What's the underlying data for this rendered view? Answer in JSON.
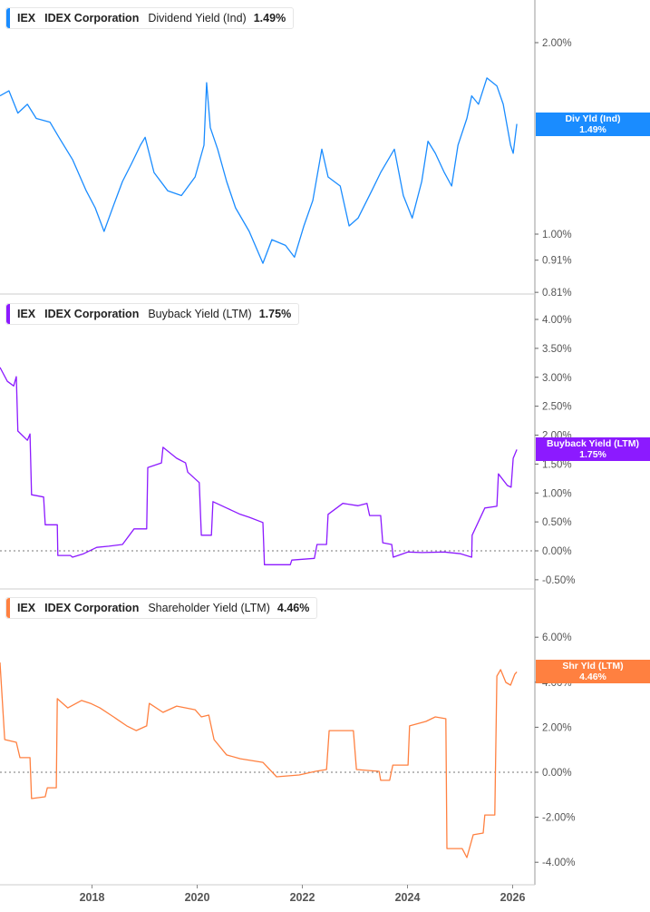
{
  "ticker": "IEX",
  "company": "IDEX Corporation",
  "x_axis": {
    "ticks": [
      "2018",
      "2020",
      "2022",
      "2024",
      "2026"
    ]
  },
  "colors": {
    "dividend": "#1a8cff",
    "buyback": "#8c1aff",
    "shareholder": "#ff8040"
  },
  "chart_data": [
    {
      "type": "line",
      "legend": {
        "metric": "Dividend Yield (Ind)",
        "value": "1.49%"
      },
      "badge": {
        "label": "Div Yld (Ind)",
        "value": "1.49%"
      },
      "yscale": "log",
      "ylim": [
        0.8,
        2.4
      ],
      "y_ticks": [
        "2.00%",
        "1.00%",
        "0.91%",
        "0.81%"
      ],
      "y_tick_values": [
        2.0,
        1.0,
        0.91,
        0.81
      ],
      "x": [
        2016.25,
        2016.42,
        2016.59,
        2016.77,
        2016.94,
        2017.2,
        2017.37,
        2017.63,
        2017.89,
        2018.06,
        2018.23,
        2018.41,
        2018.58,
        2018.75,
        2018.92,
        2019.01,
        2019.18,
        2019.44,
        2019.7,
        2019.96,
        2020.13,
        2020.18,
        2020.25,
        2020.39,
        2020.56,
        2020.73,
        2020.99,
        2021.25,
        2021.42,
        2021.68,
        2021.85,
        2022.03,
        2022.2,
        2022.37,
        2022.49,
        2022.72,
        2022.89,
        2023.06,
        2023.32,
        2023.49,
        2023.75,
        2023.92,
        2024.09,
        2024.27,
        2024.39,
        2024.53,
        2024.7,
        2024.84,
        2024.96,
        2025.13,
        2025.22,
        2025.35,
        2025.51,
        2025.7,
        2025.82,
        2025.96,
        2026.01,
        2026.08
      ],
      "values": [
        1.65,
        1.68,
        1.55,
        1.6,
        1.52,
        1.5,
        1.42,
        1.31,
        1.17,
        1.1,
        1.01,
        1.11,
        1.21,
        1.29,
        1.38,
        1.42,
        1.25,
        1.17,
        1.15,
        1.23,
        1.38,
        1.73,
        1.47,
        1.36,
        1.21,
        1.1,
        1.01,
        0.9,
        0.98,
        0.96,
        0.92,
        1.03,
        1.13,
        1.36,
        1.23,
        1.19,
        1.03,
        1.06,
        1.17,
        1.25,
        1.36,
        1.15,
        1.06,
        1.21,
        1.4,
        1.34,
        1.25,
        1.19,
        1.38,
        1.52,
        1.65,
        1.6,
        1.76,
        1.71,
        1.6,
        1.38,
        1.34,
        1.49
      ]
    },
    {
      "type": "line",
      "legend": {
        "metric": "Buyback Yield (LTM)",
        "value": "1.75%"
      },
      "badge": {
        "label": "Buyback Yield (LTM)",
        "value": "1.75%"
      },
      "yscale": "linear",
      "ylim": [
        -0.75,
        4.5
      ],
      "y_ticks": [
        "4.00%",
        "3.50%",
        "3.00%",
        "2.50%",
        "2.00%",
        "1.50%",
        "1.00%",
        "0.50%",
        "0.00%",
        "-0.50%"
      ],
      "y_tick_values": [
        4,
        3.5,
        3,
        2.5,
        2,
        1.5,
        1,
        0.5,
        0,
        -0.5
      ],
      "zero_line": true,
      "x": [
        2016.25,
        2016.39,
        2016.51,
        2016.56,
        2016.59,
        2016.77,
        2016.82,
        2016.85,
        2017.08,
        2017.11,
        2017.34,
        2017.35,
        2017.59,
        2017.63,
        2017.84,
        2018.09,
        2018.32,
        2018.58,
        2018.8,
        2019.04,
        2019.06,
        2019.32,
        2019.35,
        2019.61,
        2019.78,
        2019.82,
        2020.04,
        2020.08,
        2020.27,
        2020.3,
        2020.56,
        2020.82,
        2020.99,
        2021.25,
        2021.28,
        2021.77,
        2021.8,
        2022.23,
        2022.28,
        2022.46,
        2022.49,
        2022.77,
        2023.06,
        2023.23,
        2023.28,
        2023.49,
        2023.53,
        2023.7,
        2023.73,
        2024.01,
        2024.27,
        2024.7,
        2025.01,
        2025.22,
        2025.23,
        2025.47,
        2025.7,
        2025.73,
        2025.9,
        2025.97,
        2026.01,
        2026.08
      ],
      "values": [
        3.17,
        2.93,
        2.85,
        3.01,
        2.07,
        1.91,
        2.02,
        0.97,
        0.93,
        0.45,
        0.45,
        -0.08,
        -0.08,
        -0.11,
        -0.05,
        0.06,
        0.08,
        0.11,
        0.38,
        0.38,
        1.44,
        1.52,
        1.79,
        1.6,
        1.52,
        1.36,
        1.18,
        0.27,
        0.27,
        0.85,
        0.74,
        0.63,
        0.58,
        0.49,
        -0.24,
        -0.24,
        -0.16,
        -0.13,
        0.11,
        0.11,
        0.63,
        0.82,
        0.78,
        0.82,
        0.61,
        0.61,
        0.14,
        0.11,
        -0.11,
        -0.02,
        -0.03,
        -0.02,
        -0.05,
        -0.11,
        0.27,
        0.74,
        0.77,
        1.33,
        1.13,
        1.1,
        1.6,
        1.75
      ]
    },
    {
      "type": "line",
      "legend": {
        "metric": "Shareholder Yield (LTM)",
        "value": "4.46%"
      },
      "badge": {
        "label": "Shr Yld (LTM)",
        "value": "4.46%"
      },
      "yscale": "linear",
      "ylim": [
        -5,
        7
      ],
      "y_ticks": [
        "6.00%",
        "4.00%",
        "2.00%",
        "0.00%",
        "-2.00%",
        "-4.00%"
      ],
      "y_tick_values": [
        6,
        4,
        2,
        0,
        -2,
        -4
      ],
      "zero_line": true,
      "x": [
        2016.25,
        2016.34,
        2016.56,
        2016.63,
        2016.82,
        2016.85,
        2017.11,
        2017.15,
        2017.32,
        2017.34,
        2017.54,
        2017.8,
        2017.97,
        2018.15,
        2018.41,
        2018.66,
        2018.84,
        2019.04,
        2019.09,
        2019.35,
        2019.61,
        2019.96,
        2020.08,
        2020.22,
        2020.32,
        2020.56,
        2020.82,
        2021.25,
        2021.51,
        2021.94,
        2022.25,
        2022.46,
        2022.51,
        2022.97,
        2023.03,
        2023.46,
        2023.49,
        2023.66,
        2023.72,
        2024.01,
        2024.04,
        2024.35,
        2024.53,
        2024.73,
        2024.75,
        2025.04,
        2025.13,
        2025.25,
        2025.44,
        2025.47,
        2025.66,
        2025.7,
        2025.77,
        2025.87,
        2025.96,
        2026.04,
        2026.08
      ],
      "values": [
        4.88,
        1.45,
        1.33,
        0.65,
        0.65,
        -1.17,
        -1.09,
        -0.69,
        -0.69,
        3.27,
        2.86,
        3.19,
        3.06,
        2.86,
        2.46,
        2.06,
        1.85,
        2.06,
        3.06,
        2.66,
        2.94,
        2.78,
        2.46,
        2.54,
        1.45,
        0.77,
        0.6,
        0.44,
        -0.2,
        -0.12,
        0.04,
        0.12,
        1.85,
        1.85,
        0.12,
        0.04,
        -0.36,
        -0.36,
        0.32,
        0.32,
        2.06,
        2.26,
        2.46,
        2.38,
        -3.39,
        -3.39,
        -3.79,
        -2.78,
        -2.7,
        -1.9,
        -1.9,
        4.27,
        4.56,
        3.99,
        3.87,
        4.35,
        4.46
      ]
    }
  ]
}
